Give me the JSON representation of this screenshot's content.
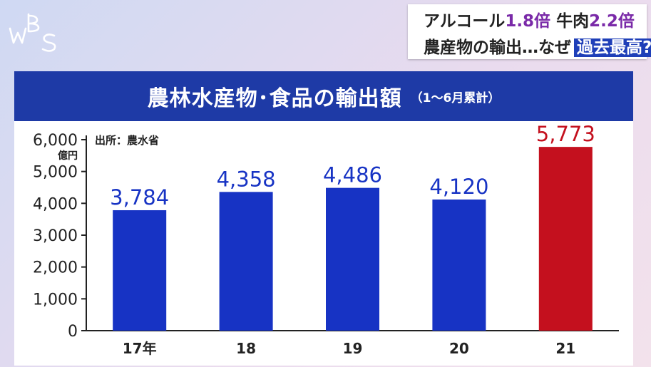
{
  "logo": {
    "text": "WBS"
  },
  "headline": {
    "line1": [
      {
        "text": "アルコール",
        "accent": false
      },
      {
        "text": "1.8倍",
        "accent": true
      },
      {
        "text": " 牛肉",
        "accent": false
      },
      {
        "text": "2.2倍",
        "accent": true
      }
    ],
    "line2_text": "農産物の輸出…なぜ",
    "line2_highlight": "過去最高?"
  },
  "chart_data": {
    "type": "bar",
    "title": "農林水産物･食品の輸出額",
    "subtitle": "（1～6月累計）",
    "source": "出所：農水省",
    "ylabel": "億円",
    "categories": [
      "17年",
      "18",
      "19",
      "20",
      "21"
    ],
    "values": [
      3784,
      4358,
      4486,
      4120,
      5773
    ],
    "value_labels": [
      "3,784",
      "4,358",
      "4,486",
      "4,120",
      "5,773"
    ],
    "ylim": [
      0,
      6000
    ],
    "yticks": [
      {
        "value": 0,
        "label": "0"
      },
      {
        "value": 1000,
        "label": "1,000"
      },
      {
        "value": 2000,
        "label": "2,000"
      },
      {
        "value": 3000,
        "label": "3,000"
      },
      {
        "value": 4000,
        "label": "4,000"
      },
      {
        "value": 5000,
        "label": "5,000"
      },
      {
        "value": 6000,
        "label": "6,000"
      }
    ],
    "colors": {
      "bar": "#1733c4",
      "highlight": "#c4101e",
      "label": "#1733c4",
      "highlight_label": "#c4101e"
    },
    "highlight_index": 4,
    "grid": false
  }
}
